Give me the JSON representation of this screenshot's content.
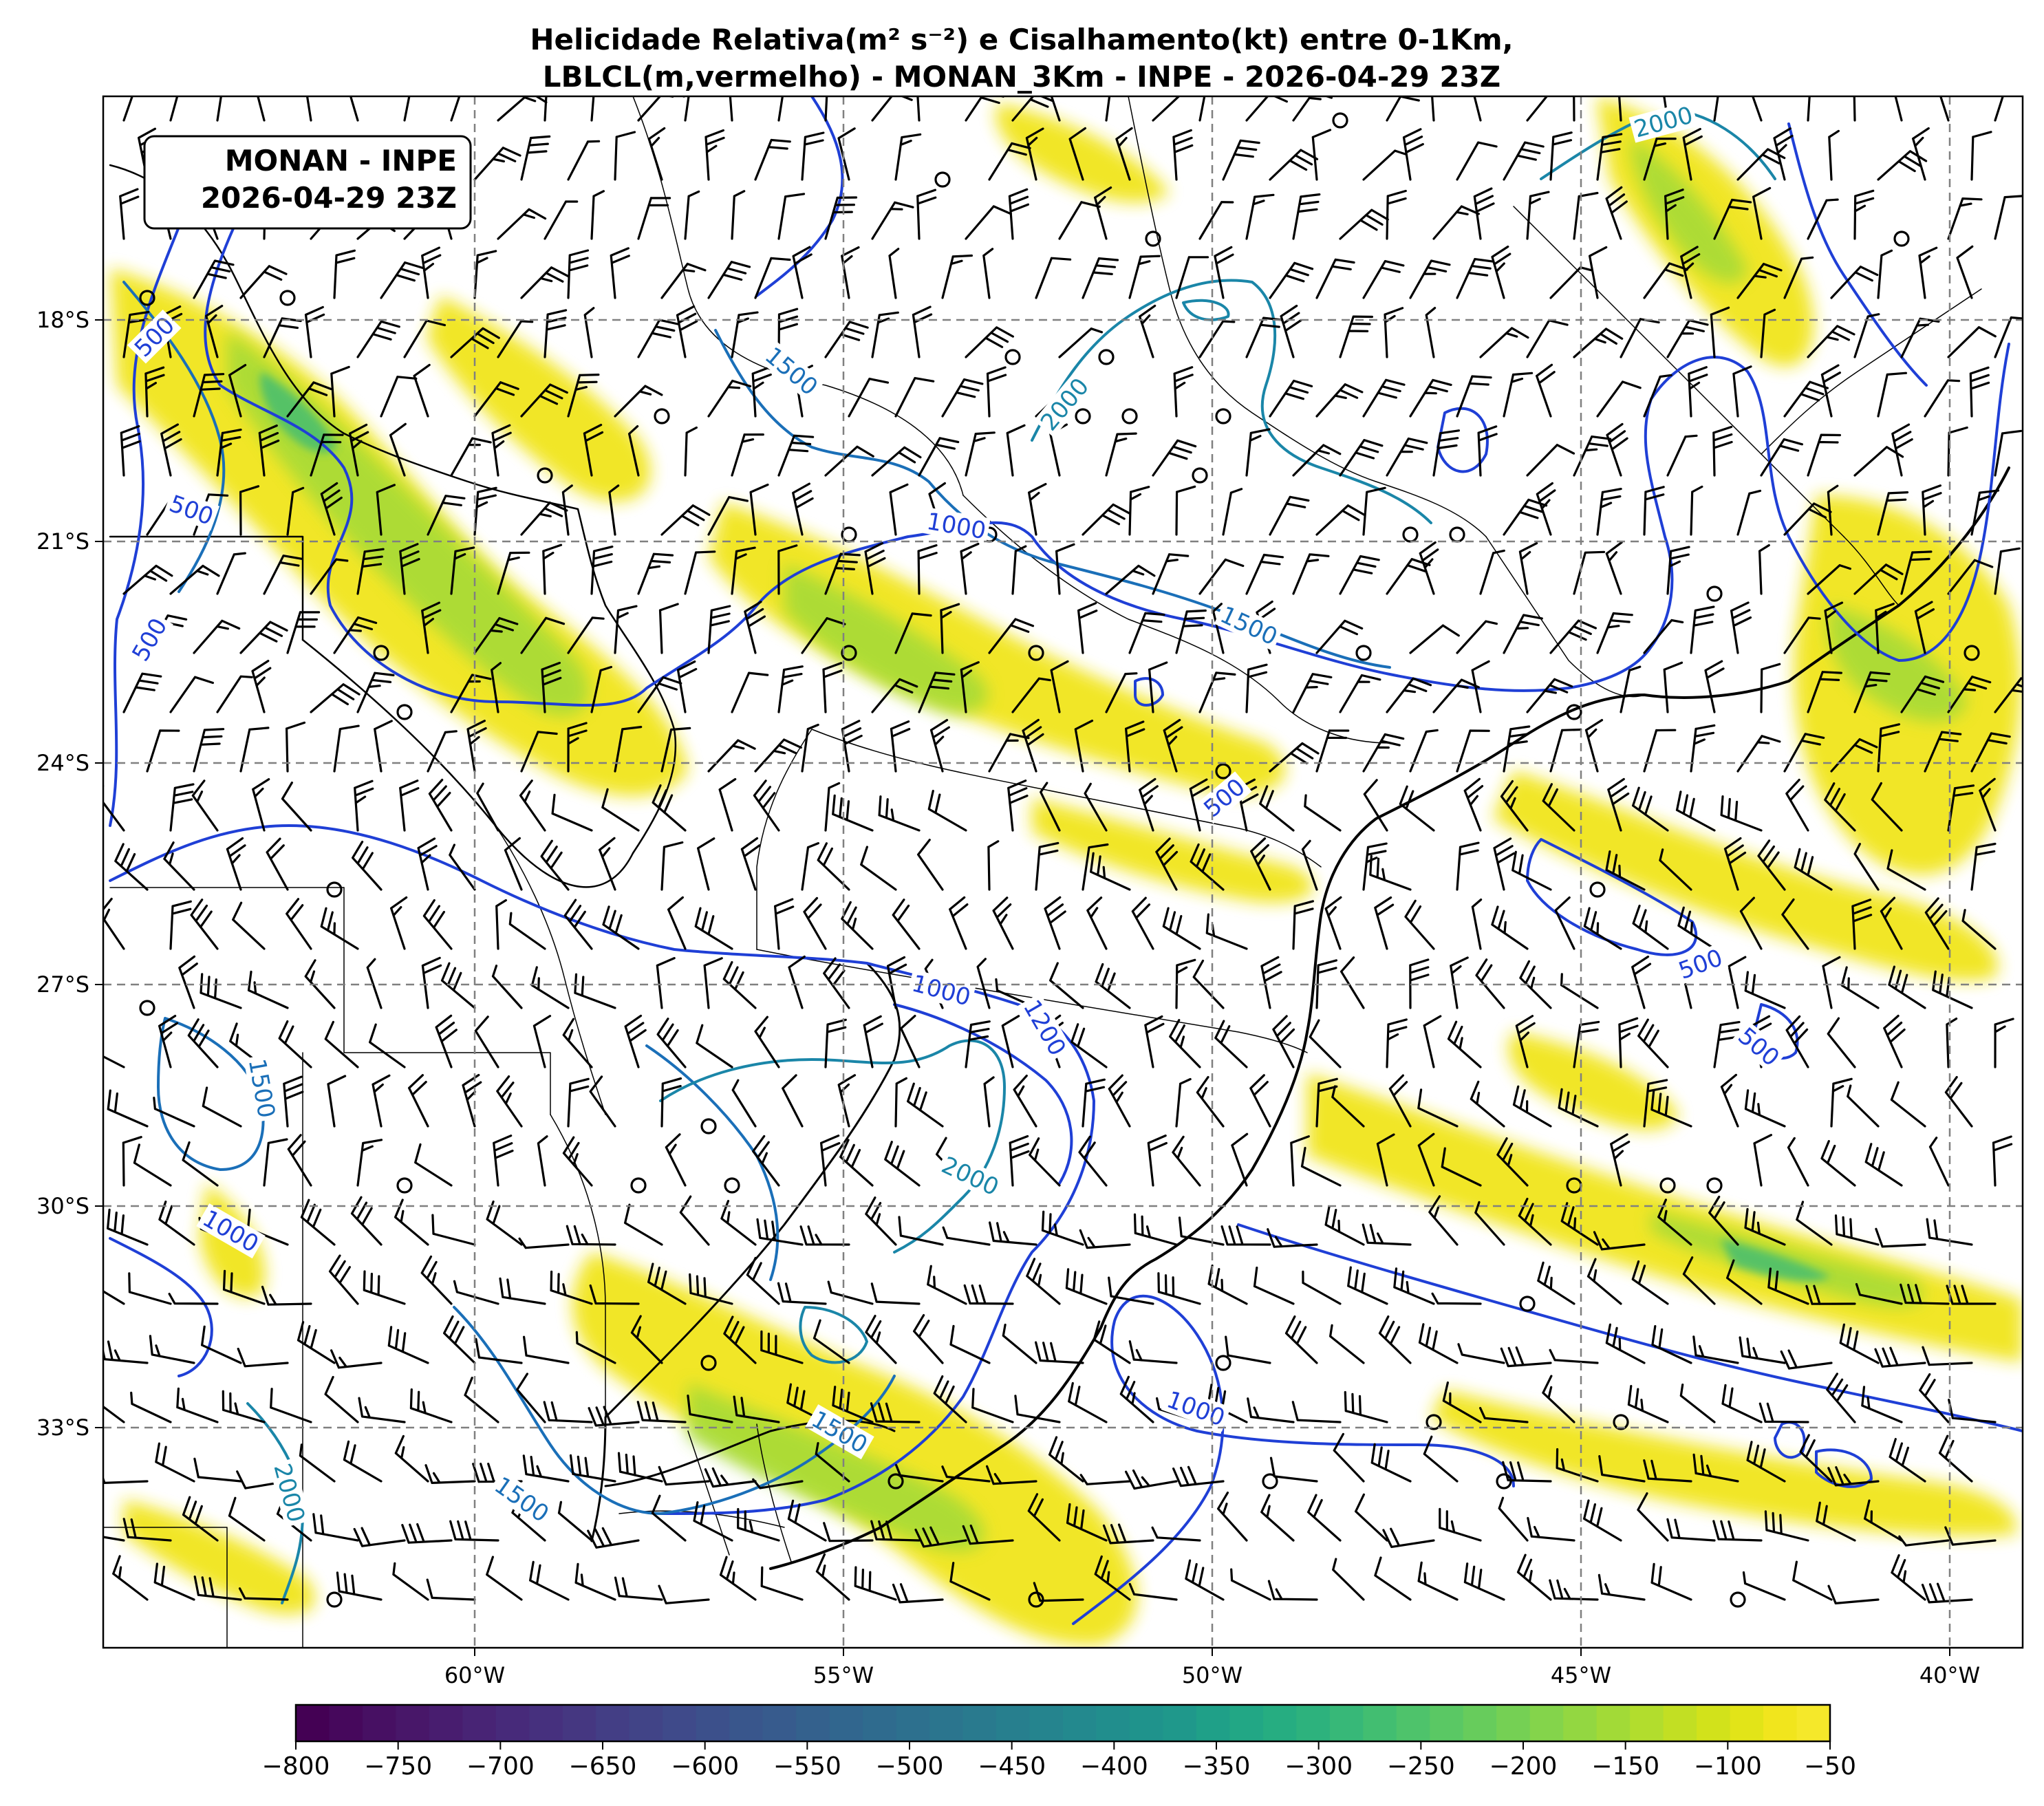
{
  "title": {
    "line1": "Helicidade Relativa(m² s⁻²) e Cisalhamento(kt) entre 0-1Km,",
    "line2": "LBLCL(m,vermelho) - MONAN_3Km - INPE - 2026-04-29 23Z"
  },
  "stamp": {
    "line1": "MONAN - INPE",
    "line2": "2026-04-29 23Z"
  },
  "axes": {
    "lon_labels": [
      "60°W",
      "55°W",
      "50°W",
      "45°W",
      "40°W"
    ],
    "lat_labels": [
      "18°S",
      "21°S",
      "24°S",
      "27°S",
      "30°S",
      "33°S"
    ]
  },
  "colorbar": {
    "ticks": [
      "−800",
      "−750",
      "−700",
      "−650",
      "−600",
      "−550",
      "−500",
      "−450",
      "−400",
      "−350",
      "−300",
      "−250",
      "−200",
      "−150",
      "−100",
      "−50"
    ],
    "colors": [
      "#440154",
      "#46085c",
      "#471063",
      "#481769",
      "#481d6f",
      "#482475",
      "#472a7a",
      "#46307e",
      "#453781",
      "#433e85",
      "#414487",
      "#3f4a8a",
      "#3c508b",
      "#39568c",
      "#375b8d",
      "#34618d",
      "#31668e",
      "#2f6b8e",
      "#2d708e",
      "#2b758e",
      "#297a8e",
      "#277f8e",
      "#25848e",
      "#23898e",
      "#218e8d",
      "#1f938c",
      "#1f988b",
      "#1fa088",
      "#22a785",
      "#26ad81",
      "#2db27d",
      "#37b878",
      "#42be71",
      "#4ec36b",
      "#5ac864",
      "#67cc5c",
      "#75d054",
      "#84d44b",
      "#93d741",
      "#a2da37",
      "#b2dd2d",
      "#c2df23",
      "#d2e21b",
      "#e2e418",
      "#f1e51d",
      "#f5e82a"
    ]
  },
  "contour_labels": [
    {
      "text": "500",
      "color": "#1f3fd6"
    },
    {
      "text": "500",
      "color": "#1f3fd6"
    },
    {
      "text": "500",
      "color": "#1f3fd6"
    },
    {
      "text": "500",
      "color": "#1f3fd6"
    },
    {
      "text": "500",
      "color": "#1f3fd6"
    },
    {
      "text": "500",
      "color": "#1f3fd6"
    },
    {
      "text": "1000",
      "color": "#1f3fd6"
    },
    {
      "text": "1000",
      "color": "#1f3fd6"
    },
    {
      "text": "1000",
      "color": "#1f3fd6"
    },
    {
      "text": "1000",
      "color": "#1f3fd6"
    },
    {
      "text": "1500",
      "color": "#1a6fb8"
    },
    {
      "text": "1500",
      "color": "#1a6fb8"
    },
    {
      "text": "1500",
      "color": "#1a6fb8"
    },
    {
      "text": "1500",
      "color": "#1a6fb8"
    },
    {
      "text": "1500",
      "color": "#1a6fb8"
    },
    {
      "text": "1200",
      "color": "#1f3fd6"
    },
    {
      "text": "2000",
      "color": "#1a86a8"
    },
    {
      "text": "2000",
      "color": "#1a86a8"
    },
    {
      "text": "2000",
      "color": "#1a86a8"
    },
    {
      "text": "2000",
      "color": "#1a86a8"
    }
  ],
  "colors": {
    "contour_blue": "#1f3fd6",
    "contour_mid": "#1a6fb8",
    "contour_teal": "#1a86a8",
    "shade_yellow": "#f1e51d",
    "shade_green": "#a2da37",
    "shade_teal": "#3fbc73"
  }
}
